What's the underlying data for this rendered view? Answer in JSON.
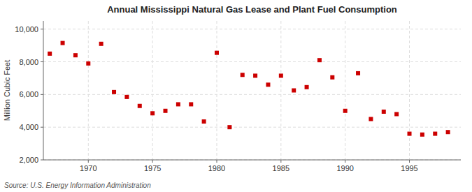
{
  "chart_data": {
    "type": "scatter",
    "title": "Annual Mississippi Natural Gas Lease and Plant Fuel Consumption",
    "ylabel": "Million Cubic Feet",
    "source": "Source: U.S. Energy Information Administration",
    "x": [
      1967,
      1968,
      1969,
      1970,
      1971,
      1972,
      1973,
      1974,
      1975,
      1976,
      1977,
      1978,
      1979,
      1980,
      1981,
      1982,
      1983,
      1984,
      1985,
      1986,
      1987,
      1988,
      1989,
      1990,
      1991,
      1992,
      1993,
      1994,
      1995,
      1996,
      1997,
      1998
    ],
    "values": [
      8500,
      9150,
      8400,
      7900,
      9100,
      6150,
      5850,
      5300,
      4850,
      5000,
      5400,
      5400,
      4350,
      8550,
      4000,
      7200,
      7150,
      6600,
      7150,
      6250,
      6450,
      8100,
      7050,
      5000,
      7300,
      4500,
      4950,
      4800,
      3600,
      3550,
      3600,
      3700
    ],
    "color": "#cc0000",
    "marker": "square",
    "xlim": [
      1966.5,
      1999
    ],
    "xticks": [
      1970,
      1975,
      1980,
      1985,
      1990,
      1995
    ],
    "ylim": [
      2000,
      10500
    ],
    "yticks": [
      {
        "value": 2000,
        "label": "2,000"
      },
      {
        "value": 4000,
        "label": "4,000"
      },
      {
        "value": 6000,
        "label": "6,000"
      },
      {
        "value": 8000,
        "label": "8,000"
      },
      {
        "value": 10000,
        "label": "10,000"
      }
    ],
    "grid": true
  }
}
